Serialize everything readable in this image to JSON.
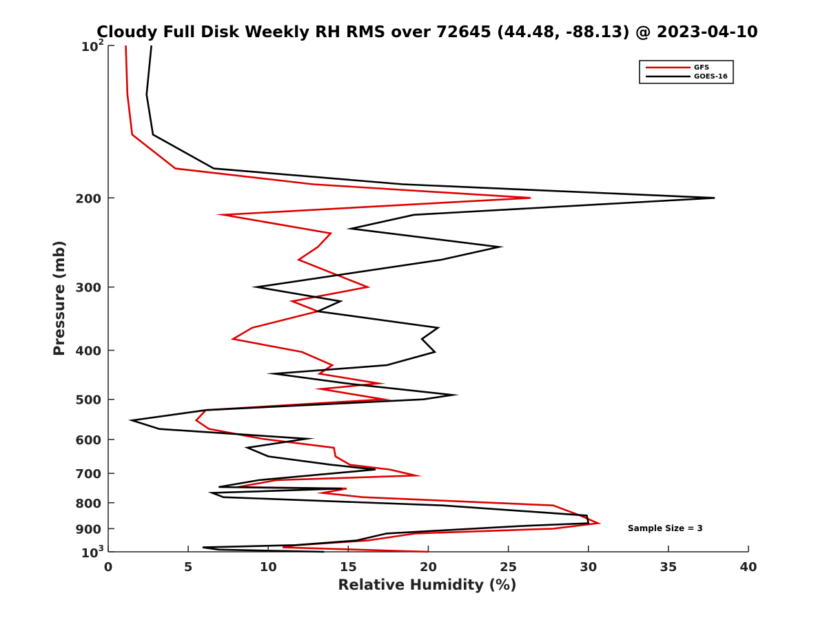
{
  "chart_data": {
    "type": "line",
    "title": "Cloudy Full Disk Weekly RH RMS over 72645 (44.48, -88.13) @ 2023-04-10",
    "xlabel": "Relative Humidity (%)",
    "ylabel": "Pressure (mb)",
    "xlim": [
      0,
      40
    ],
    "ylim": [
      100,
      1000
    ],
    "y_scale": "log",
    "y_reversed": true,
    "x_ticks": [
      0,
      5,
      10,
      15,
      20,
      25,
      30,
      35,
      40
    ],
    "y_ticks": [
      {
        "value": 100,
        "base": "10",
        "exp": "2"
      },
      {
        "value": 200,
        "label": "200"
      },
      {
        "value": 300,
        "label": "300"
      },
      {
        "value": 400,
        "label": "400"
      },
      {
        "value": 500,
        "label": "500"
      },
      {
        "value": 600,
        "label": "600"
      },
      {
        "value": 700,
        "label": "700"
      },
      {
        "value": 800,
        "label": "800"
      },
      {
        "value": 900,
        "label": "900"
      },
      {
        "value": 1000,
        "base": "10",
        "exp": "3"
      }
    ],
    "grid": false,
    "legend_position": "top-right",
    "annotation": "Sample Size = 3",
    "series": [
      {
        "name": "GFS",
        "color": "#dd0000",
        "points": [
          [
            1.1,
            100
          ],
          [
            1.2,
            125
          ],
          [
            1.5,
            150
          ],
          [
            4.2,
            175
          ],
          [
            12.8,
            188
          ],
          [
            26.4,
            200
          ],
          [
            7.2,
            216
          ],
          [
            13.9,
            235
          ],
          [
            13.1,
            250
          ],
          [
            11.9,
            265
          ],
          [
            16.2,
            300
          ],
          [
            11.5,
            320
          ],
          [
            13.1,
            335
          ],
          [
            9.0,
            361
          ],
          [
            7.8,
            380
          ],
          [
            12.1,
            403
          ],
          [
            14.0,
            428
          ],
          [
            13.2,
            445
          ],
          [
            16.9,
            465
          ],
          [
            13.3,
            477
          ],
          [
            17.2,
            500
          ],
          [
            6.1,
            525
          ],
          [
            5.5,
            550
          ],
          [
            6.3,
            572
          ],
          [
            9.6,
            598
          ],
          [
            14.1,
            623
          ],
          [
            14.2,
            648
          ],
          [
            15.1,
            673
          ],
          [
            17.6,
            688
          ],
          [
            19.2,
            707
          ],
          [
            10.5,
            722
          ],
          [
            8.1,
            745
          ],
          [
            14.9,
            750
          ],
          [
            13.4,
            765
          ],
          [
            15.9,
            780
          ],
          [
            27.8,
            810
          ],
          [
            29.5,
            848
          ],
          [
            30.6,
            878
          ],
          [
            27.8,
            900
          ],
          [
            19.2,
            920
          ],
          [
            16.2,
            950
          ],
          [
            11.8,
            970
          ],
          [
            10.9,
            980
          ],
          [
            20.0,
            1000
          ]
        ]
      },
      {
        "name": "GOES-16",
        "color": "#000000",
        "points": [
          [
            2.7,
            100
          ],
          [
            2.4,
            125
          ],
          [
            2.8,
            150
          ],
          [
            6.6,
            175
          ],
          [
            18.4,
            188
          ],
          [
            37.9,
            200
          ],
          [
            19.1,
            216
          ],
          [
            15.2,
            230
          ],
          [
            24.4,
            250
          ],
          [
            20.8,
            265
          ],
          [
            9.3,
            300
          ],
          [
            14.5,
            320
          ],
          [
            13.1,
            335
          ],
          [
            20.6,
            361
          ],
          [
            19.6,
            380
          ],
          [
            20.4,
            403
          ],
          [
            17.4,
            428
          ],
          [
            10.4,
            445
          ],
          [
            14.9,
            465
          ],
          [
            21.5,
            490
          ],
          [
            19.7,
            500
          ],
          [
            6.1,
            525
          ],
          [
            1.5,
            550
          ],
          [
            3.2,
            572
          ],
          [
            12.4,
            598
          ],
          [
            8.7,
            623
          ],
          [
            10.0,
            648
          ],
          [
            13.9,
            673
          ],
          [
            16.7,
            688
          ],
          [
            9.4,
            722
          ],
          [
            6.9,
            745
          ],
          [
            14.6,
            750
          ],
          [
            6.5,
            765
          ],
          [
            7.2,
            780
          ],
          [
            20.9,
            810
          ],
          [
            29.9,
            848
          ],
          [
            30.0,
            878
          ],
          [
            25.6,
            890
          ],
          [
            17.4,
            920
          ],
          [
            15.5,
            950
          ],
          [
            11.7,
            970
          ],
          [
            5.9,
            980
          ],
          [
            6.9,
            990
          ],
          [
            13.5,
            1000
          ]
        ]
      }
    ]
  }
}
